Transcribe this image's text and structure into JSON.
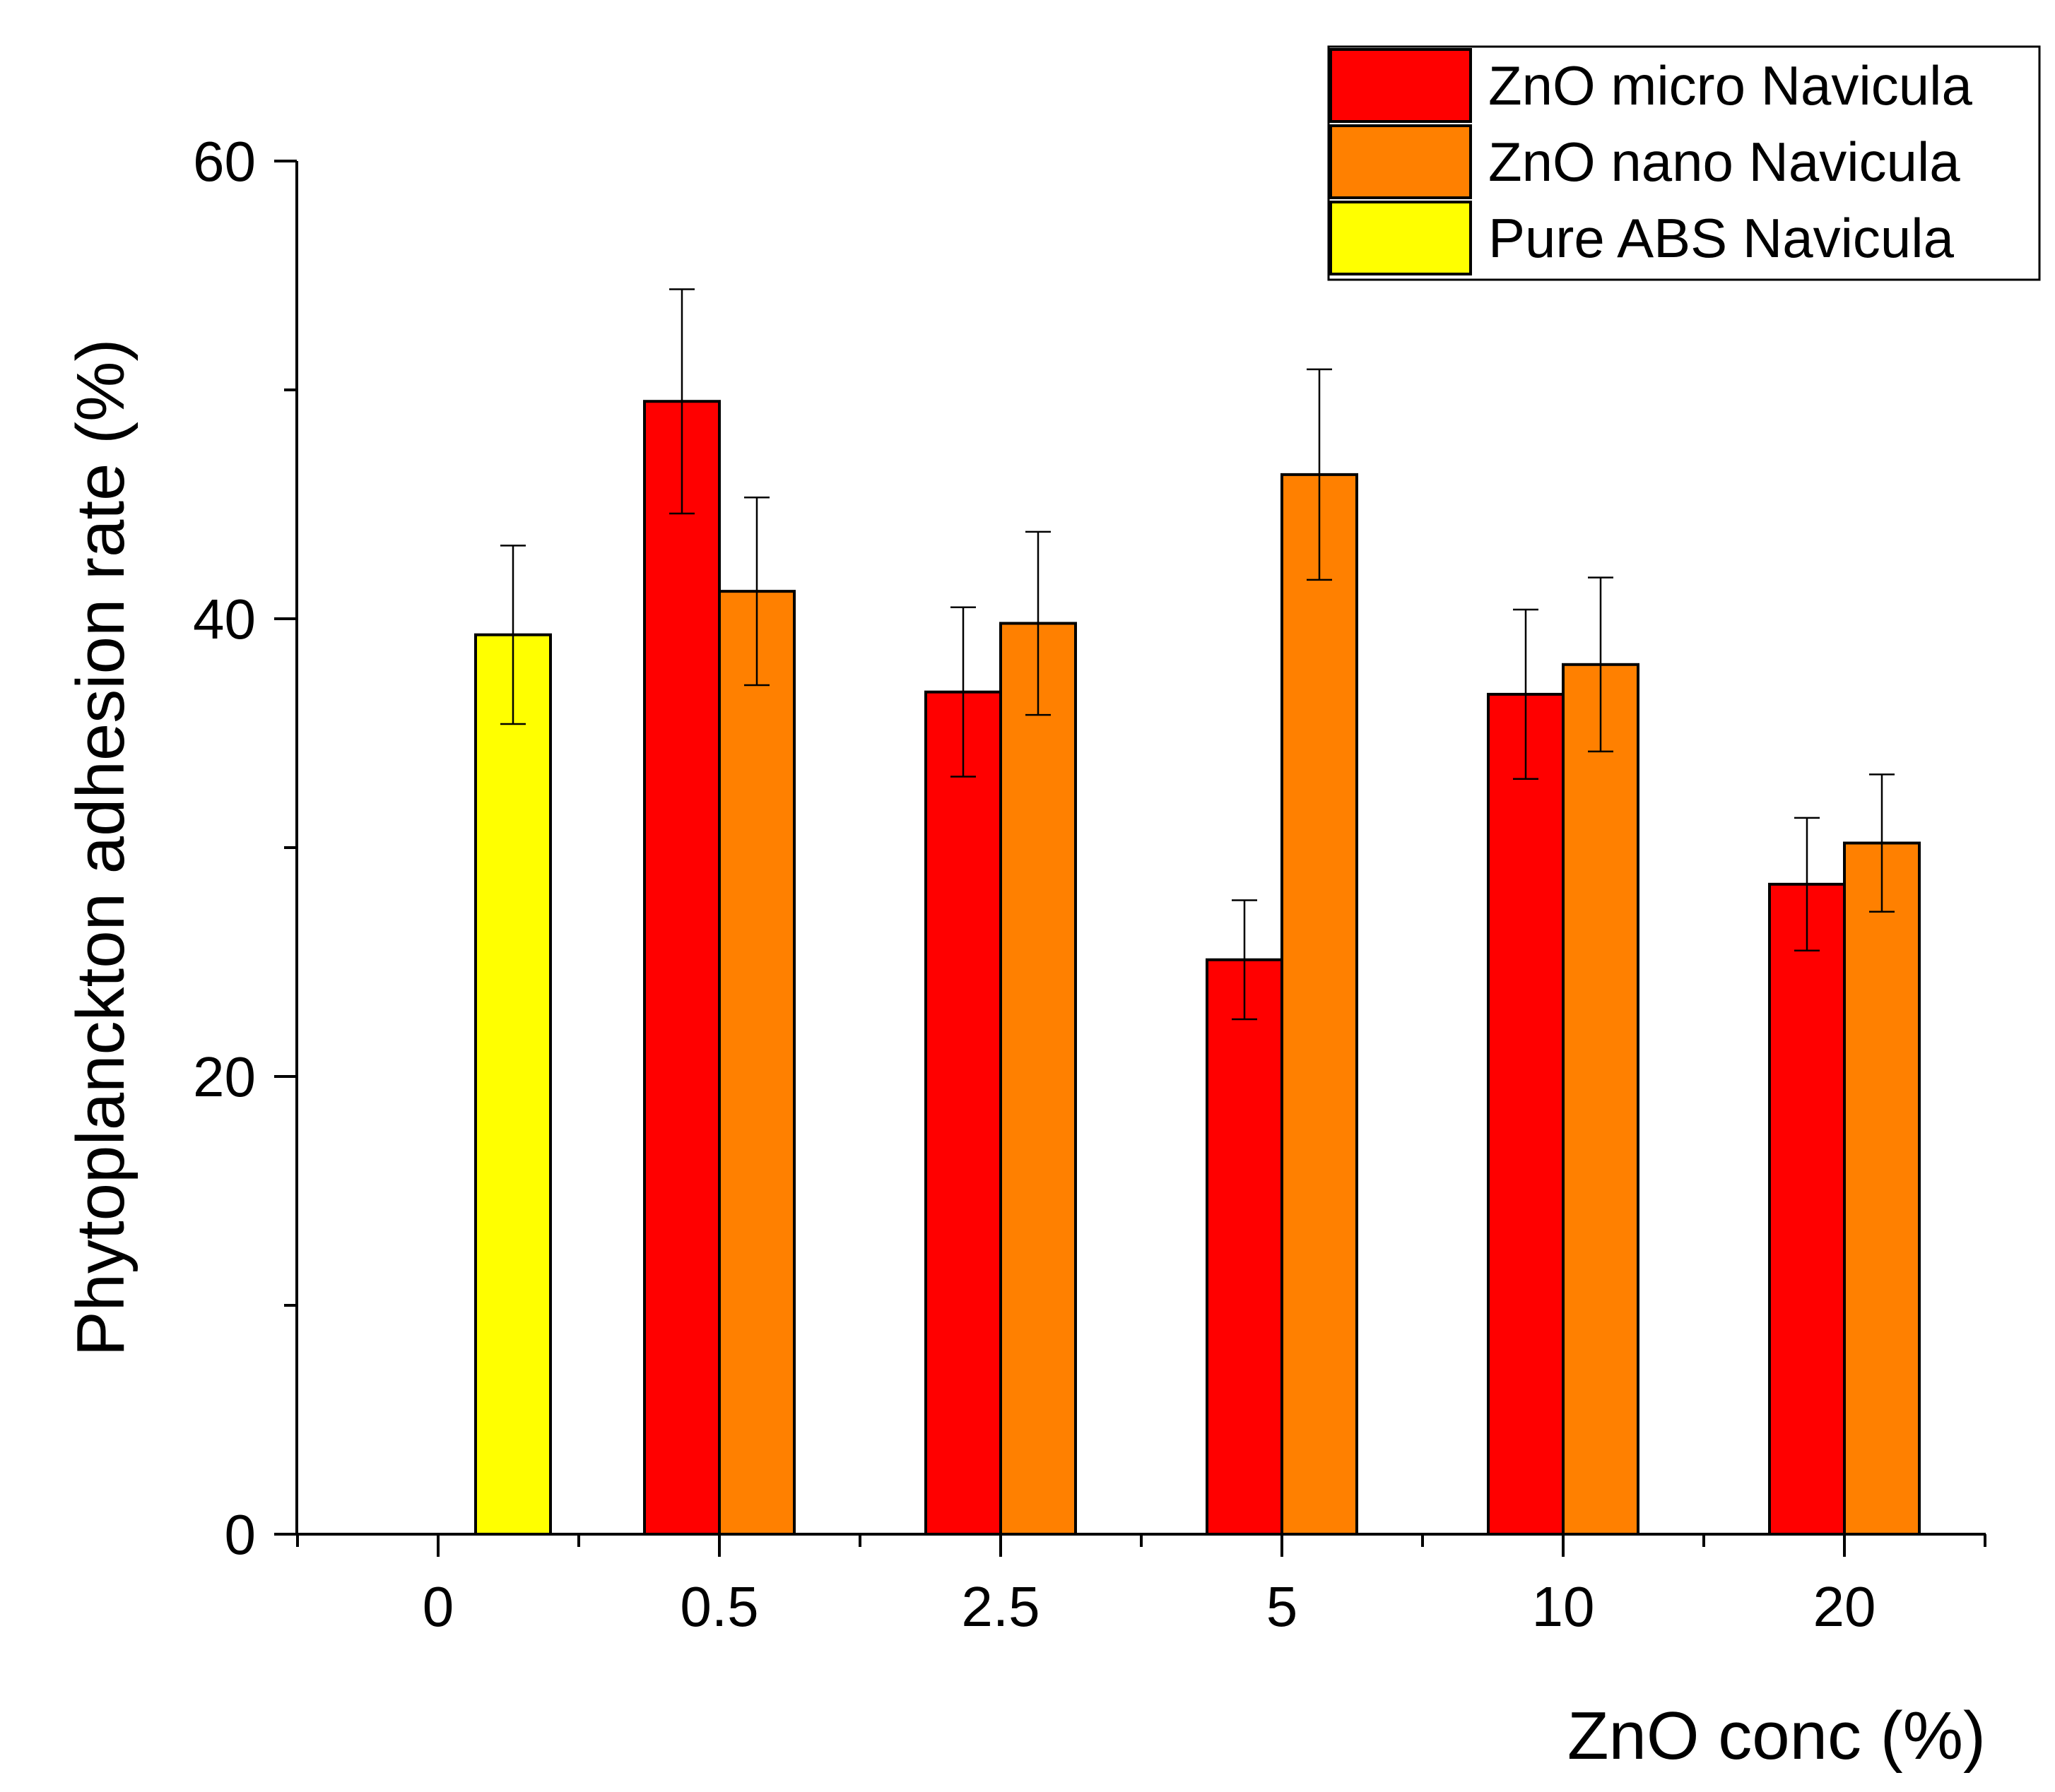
{
  "chart_data": {
    "type": "bar",
    "title": "",
    "xlabel": "ZnO conc (%)",
    "ylabel": "Phytoplanckton adhesion rate (%)",
    "categories": [
      "0",
      "0.5",
      "2.5",
      "5",
      "10",
      "20"
    ],
    "ylim": [
      0,
      60
    ],
    "yticks": [
      "0",
      "20",
      "40",
      "60"
    ],
    "grid": false,
    "legend_position": "top-right",
    "series": [
      {
        "name": "Pure ABS Navicula",
        "color": "#ffff00",
        "values": [
          39.3,
          null,
          null,
          null,
          null,
          null
        ],
        "errors": [
          3.9,
          null,
          null,
          null,
          null,
          null
        ]
      },
      {
        "name": "ZnO micro Navicula",
        "color": "#ff0000",
        "values": [
          null,
          49.5,
          36.8,
          25.1,
          36.7,
          28.4
        ],
        "errors": [
          null,
          4.9,
          3.7,
          2.6,
          3.7,
          2.9
        ]
      },
      {
        "name": "ZnO nano Navicula",
        "color": "#ff8000",
        "values": [
          null,
          41.2,
          39.8,
          46.3,
          38.0,
          30.2
        ],
        "errors": [
          null,
          4.1,
          4.0,
          4.6,
          3.8,
          3.0
        ]
      }
    ],
    "legend_order": [
      "ZnO micro Navicula",
      "ZnO nano Navicula",
      "Pure ABS Navicula"
    ]
  }
}
